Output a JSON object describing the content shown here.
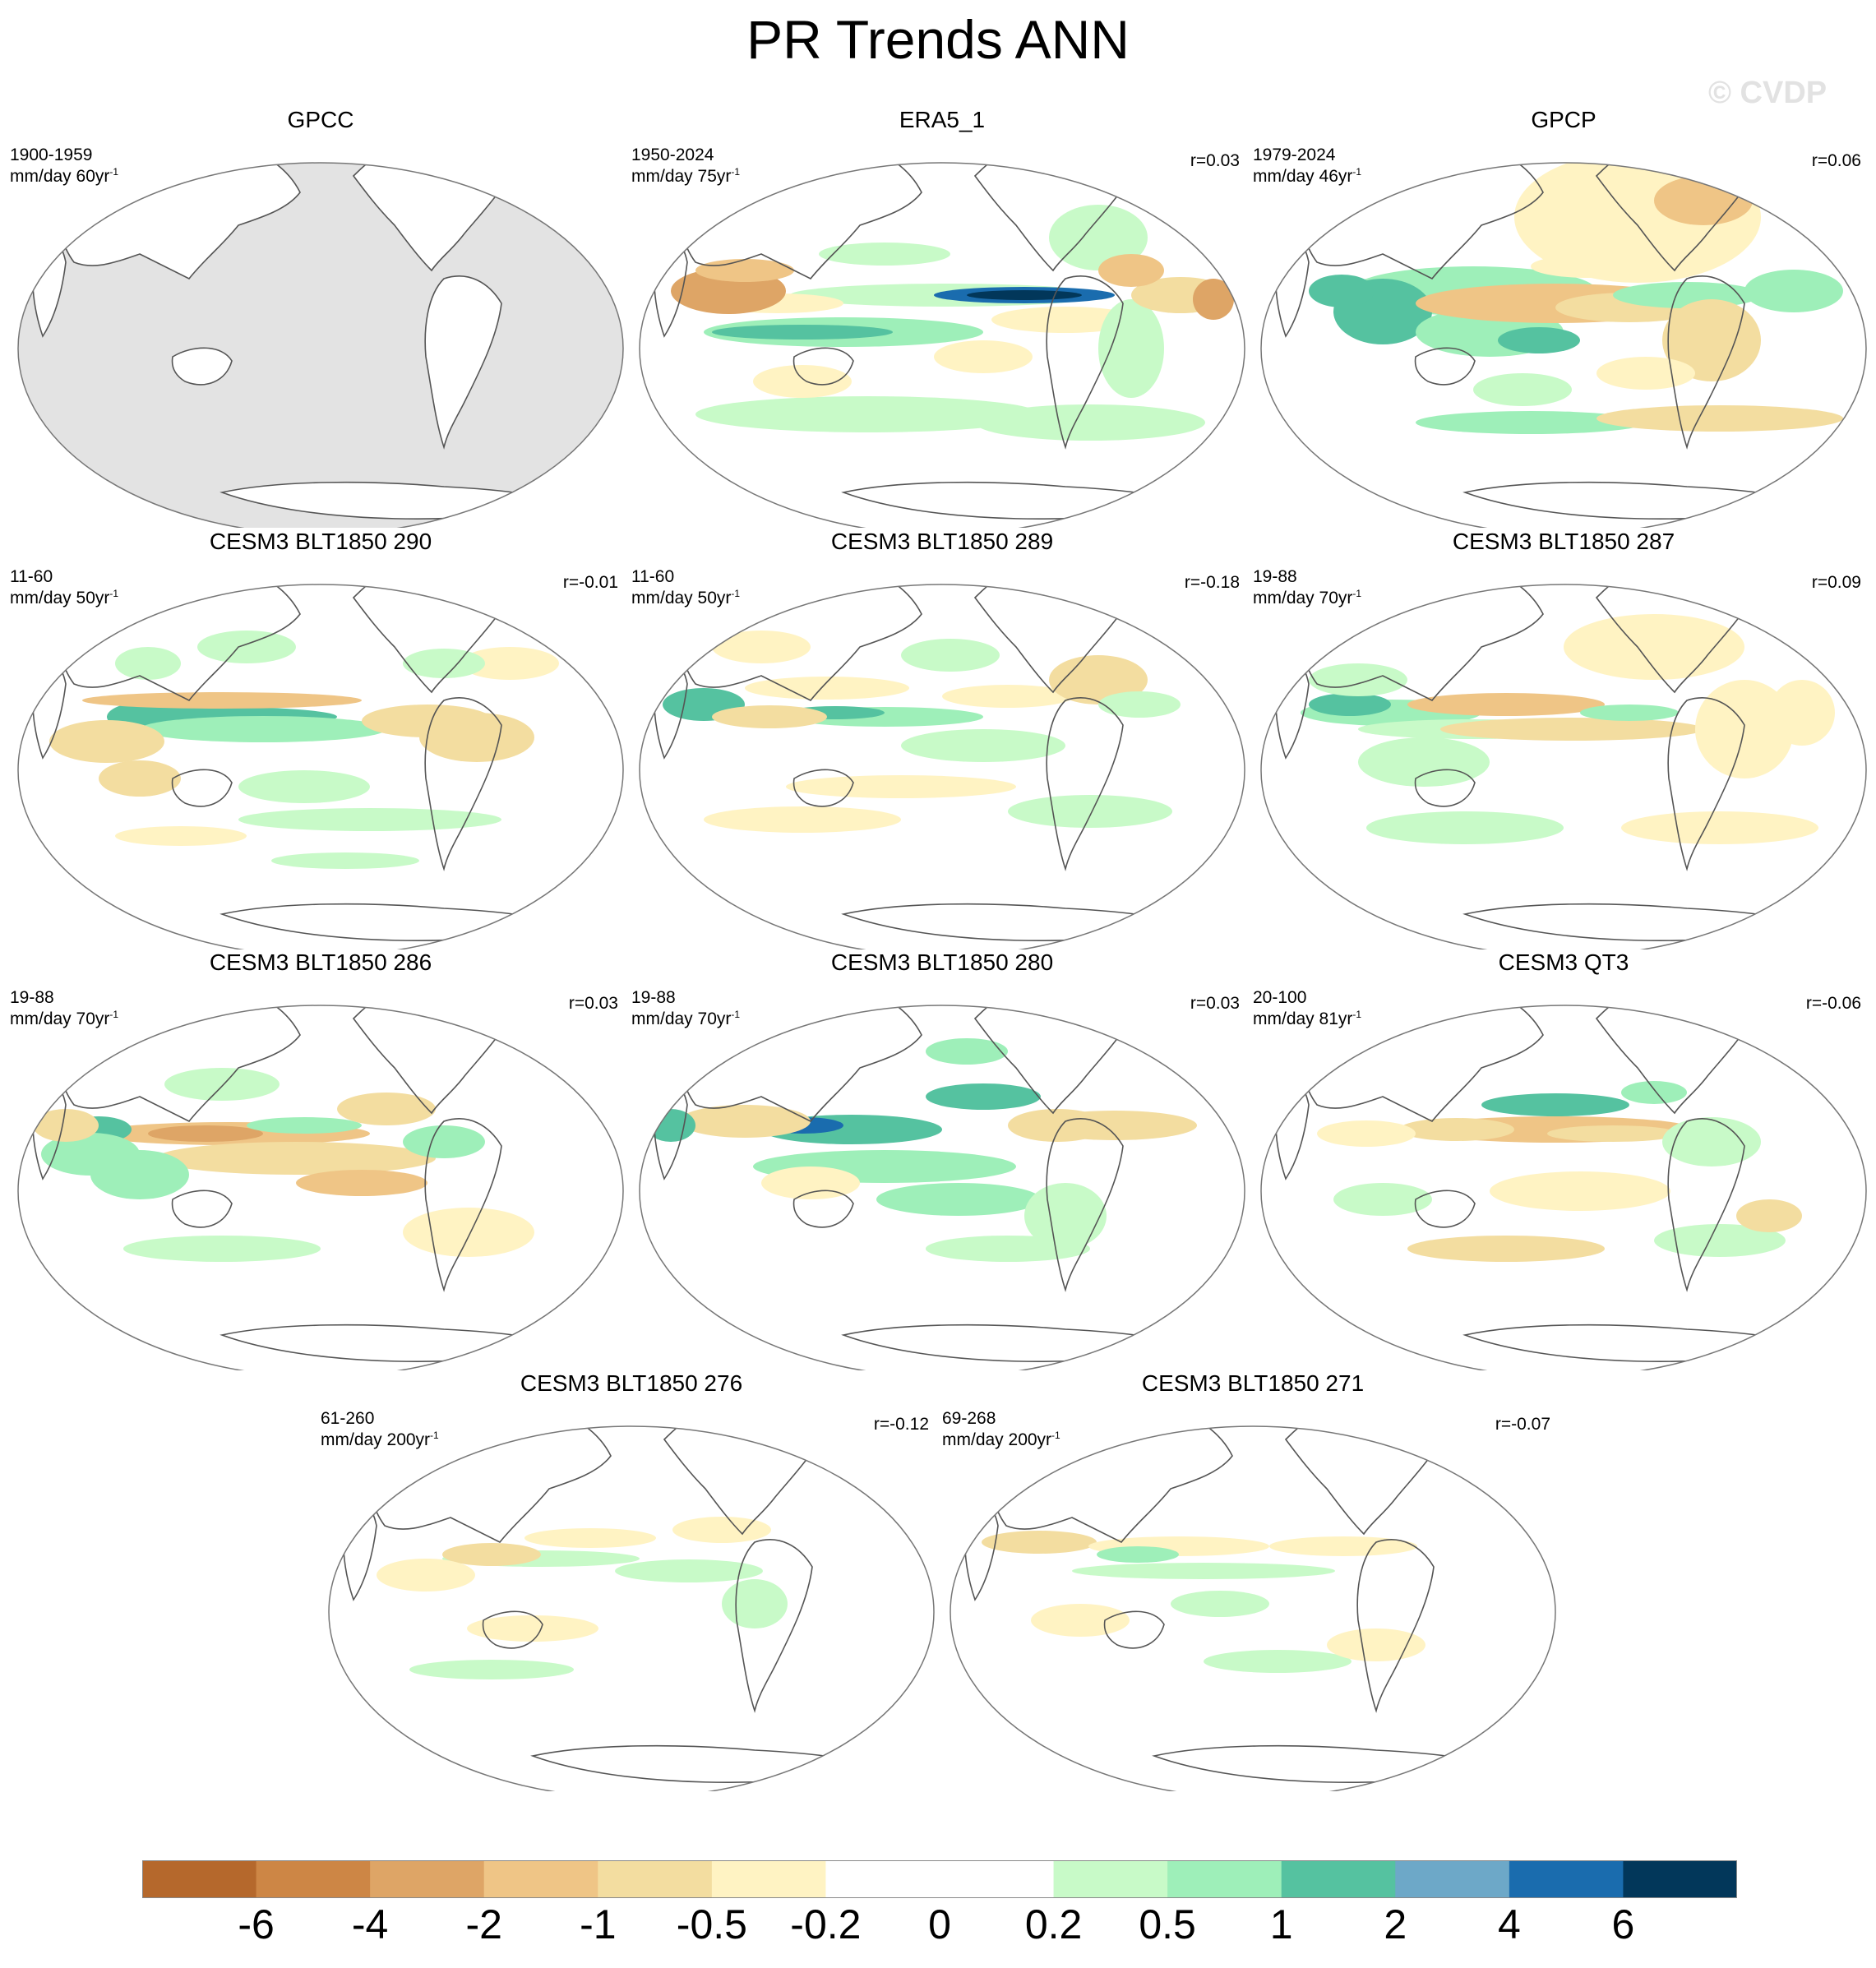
{
  "title": "PR Trends ANN",
  "watermark": "© CVDP",
  "panels": [
    {
      "title": "GPCC",
      "period": "1900-1959",
      "units": "mm/day 60yr",
      "r": "",
      "missing_ocean": true
    },
    {
      "title": "ERA5_1",
      "period": "1950-2024",
      "units": "mm/day 75yr",
      "r": "r=0.03",
      "missing_ocean": false
    },
    {
      "title": "GPCP",
      "period": "1979-2024",
      "units": "mm/day 46yr",
      "r": "r=0.06",
      "missing_ocean": false
    },
    {
      "title": "CESM3 BLT1850 290",
      "period": "11-60",
      "units": "mm/day 50yr",
      "r": "r=-0.01",
      "missing_ocean": false
    },
    {
      "title": "CESM3 BLT1850 289",
      "period": "11-60",
      "units": "mm/day 50yr",
      "r": "r=-0.18",
      "missing_ocean": false
    },
    {
      "title": "CESM3 BLT1850 287",
      "period": "19-88",
      "units": "mm/day 70yr",
      "r": "r=0.09",
      "missing_ocean": false
    },
    {
      "title": "CESM3 BLT1850 286",
      "period": "19-88",
      "units": "mm/day 70yr",
      "r": "r=0.03",
      "missing_ocean": false
    },
    {
      "title": "CESM3 BLT1850 280",
      "period": "19-88",
      "units": "mm/day 70yr",
      "r": "r=0.03",
      "missing_ocean": false
    },
    {
      "title": "CESM3 QT3",
      "period": "20-100",
      "units": "mm/day 81yr",
      "r": "r=-0.06",
      "missing_ocean": false
    },
    {
      "title": "CESM3 BLT1850 276",
      "period": "61-260",
      "units": "mm/day 200yr",
      "r": "r=-0.12",
      "missing_ocean": false
    },
    {
      "title": "CESM3 BLT1850 271",
      "period": "69-268",
      "units": "mm/day 200yr",
      "r": "r=-0.07",
      "missing_ocean": false
    }
  ],
  "units_superscript": "-1",
  "colorbar": {
    "colors": [
      "#b5682c",
      "#cd8645",
      "#dea566",
      "#efc586",
      "#f3dda0",
      "#fff3c3",
      "#ffffff",
      "#ffffff",
      "#c8fac8",
      "#9eefb9",
      "#55c2a0",
      "#6da8c8",
      "#1a6cae",
      "#02375a"
    ],
    "tick_labels": [
      "-6",
      "-4",
      "-2",
      "-1",
      "-0.5",
      "-0.2",
      "0",
      "0.2",
      "0.5",
      "1",
      "2",
      "4",
      "6"
    ]
  },
  "chart_data": {
    "type": "heatmap",
    "title": "PR Trends ANN",
    "projection": "Robinson, Pacific-centered",
    "levels": [
      -6,
      -4,
      -2,
      -1,
      -0.5,
      -0.2,
      0,
      0.2,
      0.5,
      1,
      2,
      4,
      6
    ],
    "panels": [
      {
        "title": "GPCC",
        "period": "1900-1959",
        "r": null
      },
      {
        "title": "ERA5_1",
        "period": "1950-2024",
        "r": 0.03
      },
      {
        "title": "GPCP",
        "period": "1979-2024",
        "r": 0.06
      },
      {
        "title": "CESM3 BLT1850 290",
        "period": "11-60",
        "r": -0.01
      },
      {
        "title": "CESM3 BLT1850 289",
        "period": "11-60",
        "r": -0.18
      },
      {
        "title": "CESM3 BLT1850 287",
        "period": "19-88",
        "r": 0.09
      },
      {
        "title": "CESM3 BLT1850 286",
        "period": "19-88",
        "r": 0.03
      },
      {
        "title": "CESM3 BLT1850 280",
        "period": "19-88",
        "r": 0.03
      },
      {
        "title": "CESM3 QT3",
        "period": "20-100",
        "r": -0.06
      },
      {
        "title": "CESM3 BLT1850 276",
        "period": "61-260",
        "r": -0.12
      },
      {
        "title": "CESM3 BLT1850 271",
        "period": "69-268",
        "r": -0.07
      }
    ]
  }
}
